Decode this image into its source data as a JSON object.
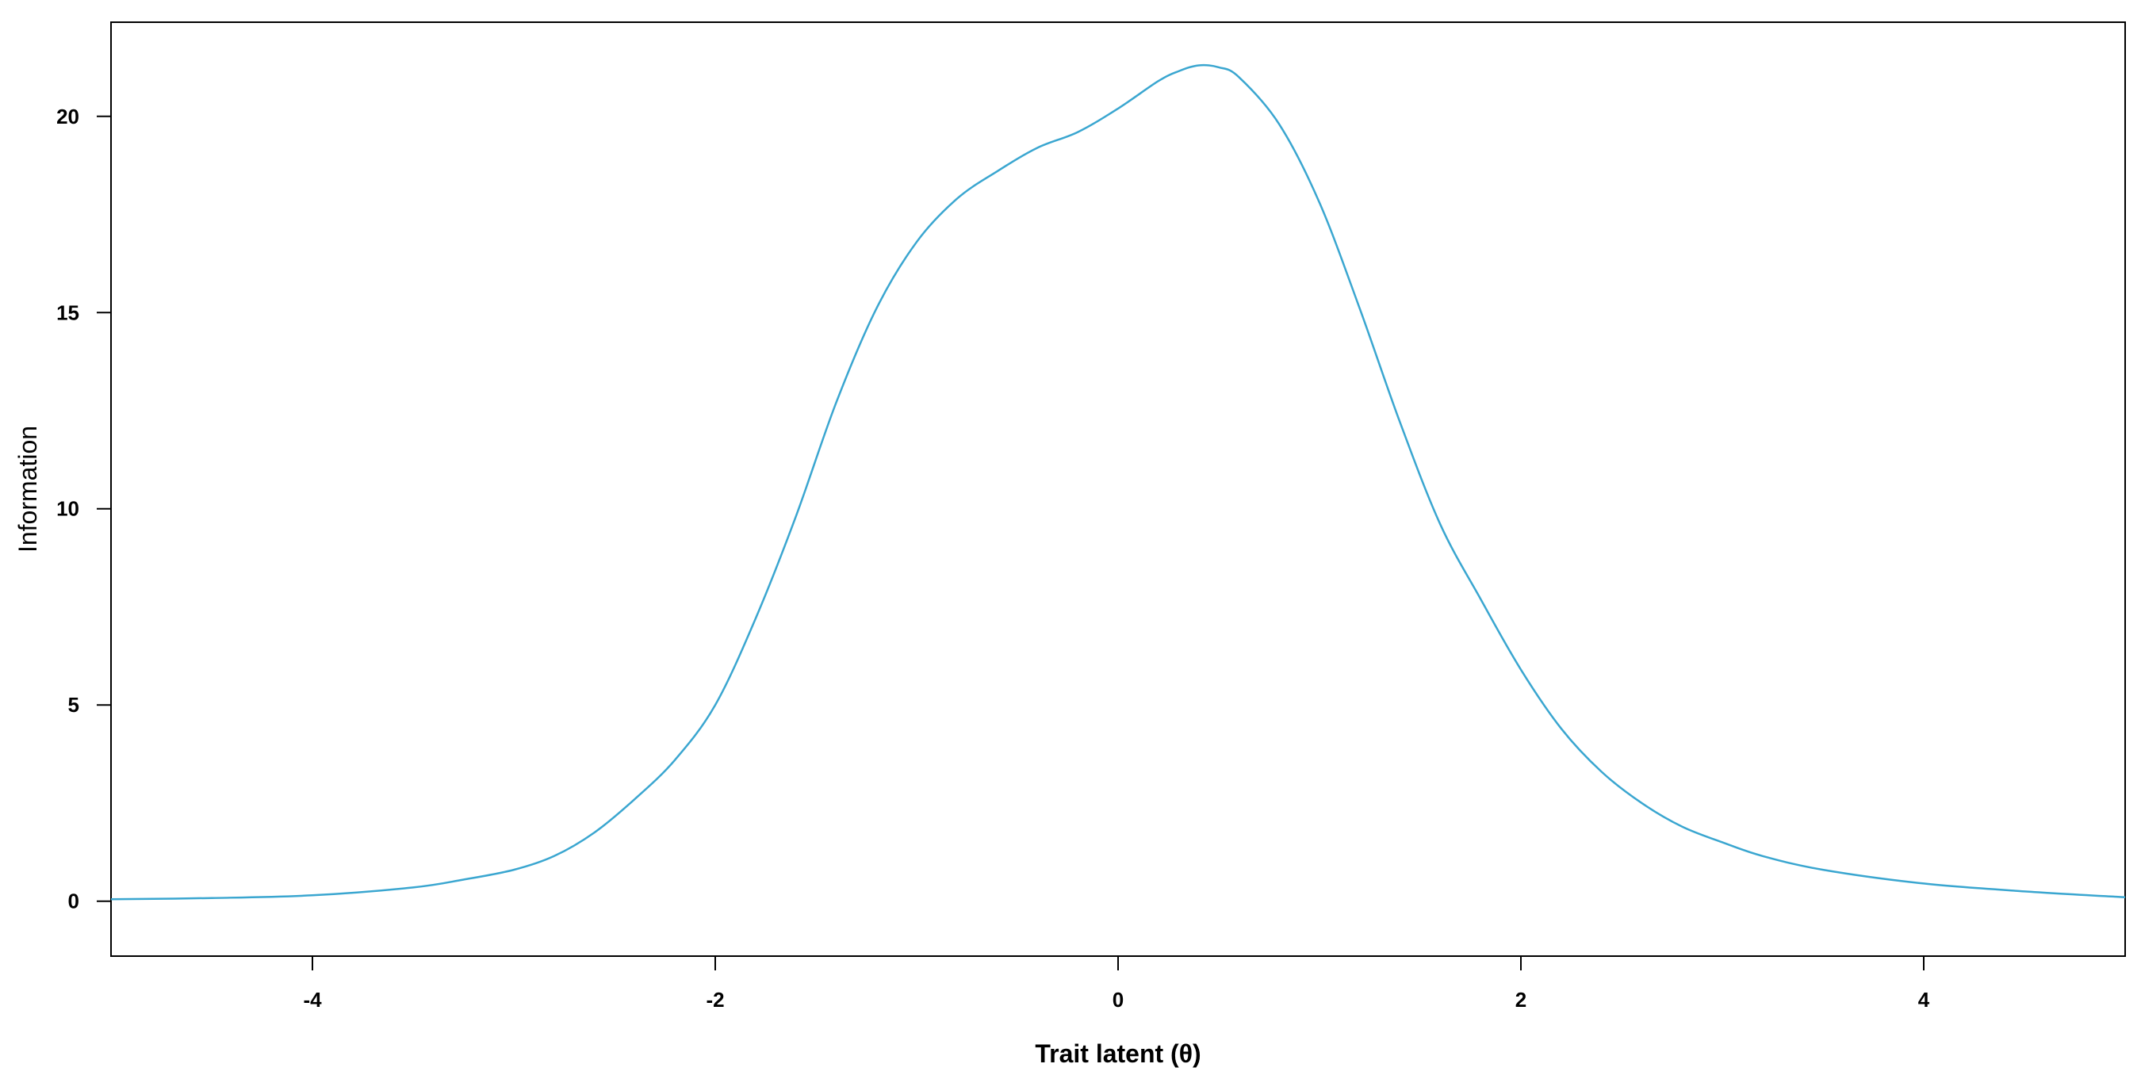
{
  "chart_data": {
    "type": "line",
    "title": "",
    "xlabel": "Trait latent (θ)",
    "ylabel": "Information",
    "xlim": [
      -5,
      5
    ],
    "ylim": [
      -1.4,
      22.4
    ],
    "x_ticks": [
      -4,
      -2,
      0,
      2,
      4
    ],
    "y_ticks": [
      0,
      5,
      10,
      15,
      20
    ],
    "grid": false,
    "legend": "none",
    "series": [
      {
        "color": "#3aa6d0",
        "x": [
          -5.0,
          -4.5,
          -4.0,
          -3.5,
          -3.25,
          -3.0,
          -2.8,
          -2.6,
          -2.4,
          -2.2,
          -2.0,
          -1.8,
          -1.6,
          -1.4,
          -1.2,
          -1.0,
          -0.8,
          -0.6,
          -0.4,
          -0.2,
          0.0,
          0.2,
          0.3,
          0.4,
          0.5,
          0.6,
          0.8,
          1.0,
          1.2,
          1.4,
          1.6,
          1.8,
          2.0,
          2.2,
          2.4,
          2.6,
          2.8,
          3.0,
          3.2,
          3.5,
          4.0,
          4.5,
          5.0
        ],
        "y": [
          0.05,
          0.08,
          0.15,
          0.35,
          0.55,
          0.8,
          1.15,
          1.75,
          2.6,
          3.6,
          5.0,
          7.2,
          9.8,
          12.7,
          15.1,
          16.8,
          17.9,
          18.6,
          19.2,
          19.6,
          20.2,
          20.9,
          21.15,
          21.3,
          21.25,
          21.0,
          19.8,
          17.8,
          15.1,
          12.2,
          9.6,
          7.7,
          5.9,
          4.4,
          3.3,
          2.5,
          1.9,
          1.5,
          1.15,
          0.8,
          0.45,
          0.25,
          0.1
        ]
      }
    ]
  }
}
